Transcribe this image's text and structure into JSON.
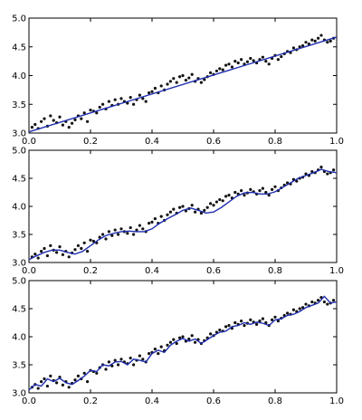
{
  "chart_data": [
    {
      "type": "scatter",
      "title": "",
      "xlabel": "",
      "ylabel": "",
      "xlim": [
        0.0,
        1.0
      ],
      "ylim": [
        3.0,
        5.0
      ],
      "xticks": [
        0.0,
        0.2,
        0.4,
        0.6,
        0.8,
        1.0
      ],
      "xtick_labels": [
        "0.0",
        "0.2",
        "0.4",
        "0.6",
        "0.8",
        "1.0"
      ],
      "yticks": [
        3.0,
        3.5,
        4.0,
        4.5,
        5.0
      ],
      "ytick_labels": [
        "3.0",
        "3.5",
        "4.0",
        "4.5",
        "5.0"
      ],
      "grid": false,
      "legend": "none",
      "point_color": "#111111",
      "line_color": "#1f2fb0",
      "series": [
        {
          "type": "scatter",
          "x": [
            0.01,
            0.02,
            0.03,
            0.04,
            0.05,
            0.06,
            0.07,
            0.08,
            0.09,
            0.1,
            0.11,
            0.12,
            0.13,
            0.14,
            0.15,
            0.16,
            0.17,
            0.18,
            0.19,
            0.2,
            0.21,
            0.22,
            0.23,
            0.24,
            0.25,
            0.26,
            0.27,
            0.28,
            0.29,
            0.3,
            0.31,
            0.32,
            0.33,
            0.34,
            0.35,
            0.36,
            0.37,
            0.38,
            0.39,
            0.4,
            0.41,
            0.42,
            0.43,
            0.44,
            0.45,
            0.46,
            0.47,
            0.48,
            0.49,
            0.5,
            0.51,
            0.52,
            0.53,
            0.54,
            0.55,
            0.56,
            0.57,
            0.58,
            0.59,
            0.6,
            0.61,
            0.62,
            0.63,
            0.64,
            0.65,
            0.66,
            0.67,
            0.68,
            0.69,
            0.7,
            0.71,
            0.72,
            0.73,
            0.74,
            0.75,
            0.76,
            0.77,
            0.78,
            0.79,
            0.8,
            0.81,
            0.82,
            0.83,
            0.84,
            0.85,
            0.86,
            0.87,
            0.88,
            0.89,
            0.9,
            0.91,
            0.92,
            0.93,
            0.94,
            0.95,
            0.96,
            0.97,
            0.98,
            0.99
          ],
          "y": [
            3.1,
            3.15,
            3.08,
            3.2,
            3.25,
            3.12,
            3.3,
            3.22,
            3.18,
            3.28,
            3.14,
            3.2,
            3.1,
            3.17,
            3.23,
            3.3,
            3.25,
            3.35,
            3.2,
            3.4,
            3.38,
            3.35,
            3.45,
            3.5,
            3.42,
            3.55,
            3.48,
            3.58,
            3.5,
            3.6,
            3.55,
            3.52,
            3.62,
            3.5,
            3.58,
            3.66,
            3.6,
            3.55,
            3.7,
            3.72,
            3.78,
            3.7,
            3.82,
            3.75,
            3.85,
            3.9,
            3.95,
            3.88,
            3.98,
            4.0,
            3.92,
            3.96,
            4.02,
            3.9,
            3.95,
            3.88,
            3.93,
            3.98,
            4.05,
            4.02,
            4.08,
            4.12,
            4.1,
            4.18,
            4.2,
            4.15,
            4.25,
            4.22,
            4.28,
            4.2,
            4.24,
            4.3,
            4.26,
            4.22,
            4.28,
            4.32,
            4.25,
            4.2,
            4.3,
            4.35,
            4.28,
            4.33,
            4.38,
            4.42,
            4.4,
            4.48,
            4.45,
            4.5,
            4.52,
            4.58,
            4.55,
            4.62,
            4.6,
            4.65,
            4.7,
            4.62,
            4.58,
            4.6,
            4.65
          ]
        },
        {
          "type": "line",
          "x": [
            0.0,
            1.0
          ],
          "y": [
            3.02,
            4.67
          ]
        }
      ]
    },
    {
      "type": "scatter",
      "title": "",
      "xlabel": "",
      "ylabel": "",
      "xlim": [
        0.0,
        1.0
      ],
      "ylim": [
        3.0,
        5.0
      ],
      "xticks": [
        0.0,
        0.2,
        0.4,
        0.6,
        0.8,
        1.0
      ],
      "xtick_labels": [
        "0.0",
        "0.2",
        "0.4",
        "0.6",
        "0.8",
        "1.0"
      ],
      "yticks": [
        3.0,
        3.5,
        4.0,
        4.5,
        5.0
      ],
      "ytick_labels": [
        "3.0",
        "3.5",
        "4.0",
        "4.5",
        "5.0"
      ],
      "grid": false,
      "legend": "none",
      "point_color": "#111111",
      "line_color": "#1f2fb0",
      "series": [
        {
          "type": "scatter",
          "x": [
            0.01,
            0.02,
            0.03,
            0.04,
            0.05,
            0.06,
            0.07,
            0.08,
            0.09,
            0.1,
            0.11,
            0.12,
            0.13,
            0.14,
            0.15,
            0.16,
            0.17,
            0.18,
            0.19,
            0.2,
            0.21,
            0.22,
            0.23,
            0.24,
            0.25,
            0.26,
            0.27,
            0.28,
            0.29,
            0.3,
            0.31,
            0.32,
            0.33,
            0.34,
            0.35,
            0.36,
            0.37,
            0.38,
            0.39,
            0.4,
            0.41,
            0.42,
            0.43,
            0.44,
            0.45,
            0.46,
            0.47,
            0.48,
            0.49,
            0.5,
            0.51,
            0.52,
            0.53,
            0.54,
            0.55,
            0.56,
            0.57,
            0.58,
            0.59,
            0.6,
            0.61,
            0.62,
            0.63,
            0.64,
            0.65,
            0.66,
            0.67,
            0.68,
            0.69,
            0.7,
            0.71,
            0.72,
            0.73,
            0.74,
            0.75,
            0.76,
            0.77,
            0.78,
            0.79,
            0.8,
            0.81,
            0.82,
            0.83,
            0.84,
            0.85,
            0.86,
            0.87,
            0.88,
            0.89,
            0.9,
            0.91,
            0.92,
            0.93,
            0.94,
            0.95,
            0.96,
            0.97,
            0.98,
            0.99
          ],
          "y": [
            3.1,
            3.15,
            3.08,
            3.2,
            3.25,
            3.12,
            3.3,
            3.22,
            3.18,
            3.28,
            3.14,
            3.2,
            3.1,
            3.17,
            3.23,
            3.3,
            3.25,
            3.35,
            3.2,
            3.4,
            3.38,
            3.35,
            3.45,
            3.5,
            3.42,
            3.55,
            3.48,
            3.58,
            3.5,
            3.6,
            3.55,
            3.52,
            3.62,
            3.5,
            3.58,
            3.66,
            3.6,
            3.55,
            3.7,
            3.72,
            3.78,
            3.7,
            3.82,
            3.75,
            3.85,
            3.9,
            3.95,
            3.88,
            3.98,
            4.0,
            3.92,
            3.96,
            4.02,
            3.9,
            3.95,
            3.88,
            3.93,
            3.98,
            4.05,
            4.02,
            4.08,
            4.12,
            4.1,
            4.18,
            4.2,
            4.15,
            4.25,
            4.22,
            4.28,
            4.2,
            4.24,
            4.3,
            4.26,
            4.22,
            4.28,
            4.32,
            4.25,
            4.2,
            4.3,
            4.35,
            4.28,
            4.33,
            4.38,
            4.42,
            4.4,
            4.48,
            4.45,
            4.5,
            4.52,
            4.58,
            4.55,
            4.62,
            4.6,
            4.65,
            4.7,
            4.62,
            4.58,
            4.6,
            4.65
          ]
        },
        {
          "type": "line",
          "x": [
            0.0,
            0.025,
            0.05,
            0.075,
            0.1,
            0.125,
            0.15,
            0.175,
            0.2,
            0.225,
            0.25,
            0.275,
            0.3,
            0.325,
            0.35,
            0.375,
            0.4,
            0.425,
            0.45,
            0.475,
            0.5,
            0.525,
            0.55,
            0.575,
            0.6,
            0.625,
            0.65,
            0.675,
            0.7,
            0.725,
            0.75,
            0.775,
            0.8,
            0.825,
            0.85,
            0.875,
            0.9,
            0.925,
            0.95,
            0.975,
            1.0
          ],
          "y": [
            3.05,
            3.12,
            3.18,
            3.22,
            3.22,
            3.18,
            3.15,
            3.2,
            3.3,
            3.4,
            3.48,
            3.52,
            3.55,
            3.56,
            3.55,
            3.55,
            3.6,
            3.7,
            3.78,
            3.85,
            3.93,
            3.97,
            3.93,
            3.88,
            3.9,
            3.98,
            4.08,
            4.18,
            4.24,
            4.25,
            4.22,
            4.22,
            4.26,
            4.34,
            4.42,
            4.5,
            4.55,
            4.6,
            4.66,
            4.62,
            4.6
          ]
        }
      ]
    },
    {
      "type": "scatter",
      "title": "",
      "xlabel": "",
      "ylabel": "",
      "xlim": [
        0.0,
        1.0
      ],
      "ylim": [
        3.0,
        5.0
      ],
      "xticks": [
        0.0,
        0.2,
        0.4,
        0.6,
        0.8,
        1.0
      ],
      "xtick_labels": [
        "0.0",
        "0.2",
        "0.4",
        "0.6",
        "0.8",
        "1.0"
      ],
      "yticks": [
        3.0,
        3.5,
        4.0,
        4.5,
        5.0
      ],
      "ytick_labels": [
        "3.0",
        "3.5",
        "4.0",
        "4.5",
        "5.0"
      ],
      "grid": false,
      "legend": "none",
      "point_color": "#111111",
      "line_color": "#1f2fb0",
      "series": [
        {
          "type": "scatter",
          "x": [
            0.01,
            0.02,
            0.03,
            0.04,
            0.05,
            0.06,
            0.07,
            0.08,
            0.09,
            0.1,
            0.11,
            0.12,
            0.13,
            0.14,
            0.15,
            0.16,
            0.17,
            0.18,
            0.19,
            0.2,
            0.21,
            0.22,
            0.23,
            0.24,
            0.25,
            0.26,
            0.27,
            0.28,
            0.29,
            0.3,
            0.31,
            0.32,
            0.33,
            0.34,
            0.35,
            0.36,
            0.37,
            0.38,
            0.39,
            0.4,
            0.41,
            0.42,
            0.43,
            0.44,
            0.45,
            0.46,
            0.47,
            0.48,
            0.49,
            0.5,
            0.51,
            0.52,
            0.53,
            0.54,
            0.55,
            0.56,
            0.57,
            0.58,
            0.59,
            0.6,
            0.61,
            0.62,
            0.63,
            0.64,
            0.65,
            0.66,
            0.67,
            0.68,
            0.69,
            0.7,
            0.71,
            0.72,
            0.73,
            0.74,
            0.75,
            0.76,
            0.77,
            0.78,
            0.79,
            0.8,
            0.81,
            0.82,
            0.83,
            0.84,
            0.85,
            0.86,
            0.87,
            0.88,
            0.89,
            0.9,
            0.91,
            0.92,
            0.93,
            0.94,
            0.95,
            0.96,
            0.97,
            0.98,
            0.99
          ],
          "y": [
            3.1,
            3.15,
            3.08,
            3.2,
            3.25,
            3.12,
            3.3,
            3.22,
            3.18,
            3.28,
            3.14,
            3.2,
            3.1,
            3.17,
            3.23,
            3.3,
            3.25,
            3.35,
            3.2,
            3.4,
            3.38,
            3.35,
            3.45,
            3.5,
            3.42,
            3.55,
            3.48,
            3.58,
            3.5,
            3.6,
            3.55,
            3.52,
            3.62,
            3.5,
            3.58,
            3.66,
            3.6,
            3.55,
            3.7,
            3.72,
            3.78,
            3.7,
            3.82,
            3.75,
            3.85,
            3.9,
            3.95,
            3.88,
            3.98,
            4.0,
            3.92,
            3.96,
            4.02,
            3.9,
            3.95,
            3.88,
            3.93,
            3.98,
            4.05,
            4.02,
            4.08,
            4.12,
            4.1,
            4.18,
            4.2,
            4.15,
            4.25,
            4.22,
            4.28,
            4.2,
            4.24,
            4.3,
            4.26,
            4.22,
            4.28,
            4.32,
            4.25,
            4.2,
            4.3,
            4.35,
            4.28,
            4.33,
            4.38,
            4.42,
            4.4,
            4.48,
            4.45,
            4.5,
            4.52,
            4.58,
            4.55,
            4.62,
            4.6,
            4.65,
            4.7,
            4.62,
            4.58,
            4.6,
            4.65
          ]
        },
        {
          "type": "line",
          "x": [
            0.0,
            0.02,
            0.04,
            0.06,
            0.08,
            0.1,
            0.12,
            0.14,
            0.16,
            0.18,
            0.2,
            0.22,
            0.24,
            0.26,
            0.28,
            0.3,
            0.32,
            0.34,
            0.36,
            0.38,
            0.4,
            0.42,
            0.44,
            0.46,
            0.48,
            0.5,
            0.52,
            0.54,
            0.56,
            0.58,
            0.6,
            0.62,
            0.64,
            0.66,
            0.68,
            0.7,
            0.72,
            0.74,
            0.76,
            0.78,
            0.8,
            0.82,
            0.84,
            0.86,
            0.88,
            0.9,
            0.92,
            0.94,
            0.96,
            0.98,
            1.0
          ],
          "y": [
            3.05,
            3.15,
            3.12,
            3.25,
            3.2,
            3.26,
            3.18,
            3.15,
            3.22,
            3.3,
            3.4,
            3.38,
            3.5,
            3.48,
            3.55,
            3.56,
            3.5,
            3.6,
            3.58,
            3.55,
            3.7,
            3.76,
            3.72,
            3.85,
            3.92,
            3.97,
            3.92,
            3.96,
            3.88,
            3.95,
            4.02,
            4.08,
            4.1,
            4.18,
            4.2,
            4.25,
            4.22,
            4.26,
            4.24,
            4.2,
            4.3,
            4.32,
            4.38,
            4.4,
            4.45,
            4.52,
            4.56,
            4.6,
            4.72,
            4.6,
            4.62
          ]
        }
      ]
    }
  ]
}
